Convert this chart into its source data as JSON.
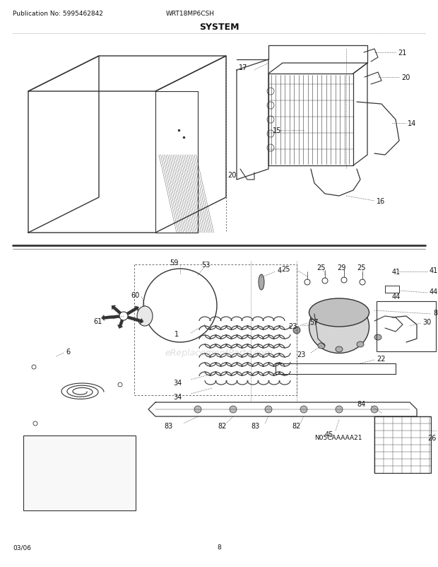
{
  "title": "SYSTEM",
  "pub_no": "Publication No: 5995462842",
  "model": "WRT18MP6CSH",
  "date": "03/06",
  "page": "8",
  "watermark": "eReplacementParts.com",
  "part_code": "N05CAAAAA21",
  "bg_color": "#ffffff",
  "line_color": "#333333",
  "text_color": "#111111"
}
